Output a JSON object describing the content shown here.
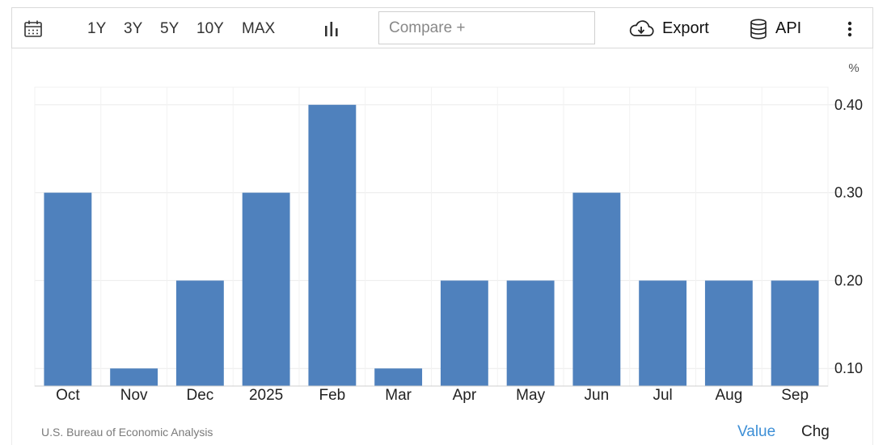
{
  "toolbar": {
    "calendar_icon": "calendar-icon",
    "ranges": [
      "1Y",
      "3Y",
      "5Y",
      "10Y",
      "MAX"
    ],
    "chart_type_icon": "bar-chart-icon",
    "compare_placeholder": "Compare +",
    "export_label": "Export",
    "export_icon": "cloud-download-icon",
    "api_label": "API",
    "api_icon": "database-icon",
    "more_icon": "vertical-ellipsis-icon"
  },
  "chart_data": {
    "type": "bar",
    "categories": [
      "Oct",
      "Nov",
      "Dec",
      "2025",
      "Feb",
      "Mar",
      "Apr",
      "May",
      "Jun",
      "Jul",
      "Aug",
      "Sep"
    ],
    "values": [
      0.3,
      0.1,
      0.2,
      0.3,
      0.4,
      0.1,
      0.2,
      0.2,
      0.3,
      0.2,
      0.2,
      0.2
    ],
    "unit": "%",
    "yticks": [
      "0.10",
      "0.20",
      "0.30",
      "0.40"
    ],
    "ytick_values": [
      0.1,
      0.2,
      0.3,
      0.4
    ],
    "ylim": [
      0.08,
      0.42
    ],
    "bar_color": "#4f81bd",
    "grid": true,
    "y_axis_side": "right"
  },
  "footer": {
    "source": "U.S. Bureau of Economic Analysis",
    "value_label": "Value",
    "chg_label": "Chg",
    "active_color": "#3d8fd6"
  }
}
